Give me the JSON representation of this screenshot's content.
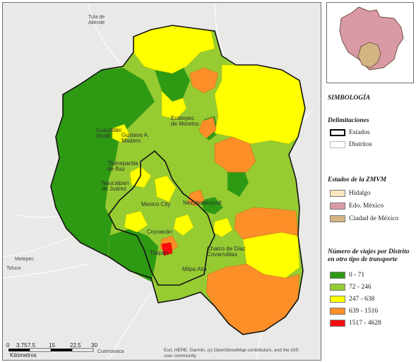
{
  "map": {
    "place_labels": [
      {
        "id": "tula",
        "text": "Tula de\nAllende"
      },
      {
        "id": "toluca",
        "text": "Toluca"
      },
      {
        "id": "metepec",
        "text": "Metepec"
      },
      {
        "id": "cuernavaca",
        "text": "Cuernavaca"
      },
      {
        "id": "gam",
        "text": "Gustavo A.\nMadero"
      },
      {
        "id": "ecatepec",
        "text": "Ecatepec\nde Morelos"
      },
      {
        "id": "tlalnepantla",
        "text": "Tlalnepantla\nde Baz"
      },
      {
        "id": "naucalpan",
        "text": "Naucalpan\nde Juárez"
      },
      {
        "id": "cdmx",
        "text": "Mexico City"
      },
      {
        "id": "neza",
        "text": "Nezahualcóyotl"
      },
      {
        "id": "coyoacan",
        "text": "Coyoacán"
      },
      {
        "id": "tlalpan",
        "text": "Tlalpan"
      },
      {
        "id": "chalco",
        "text": "Chalco de Díaz\nCovarrubias"
      },
      {
        "id": "milpa",
        "text": "Milpa Alta"
      },
      {
        "id": "cuautitlan",
        "text": "Cuautitlán\nIzcalli"
      }
    ],
    "scale_ticks": [
      "0",
      "3.75",
      "7.5",
      "15",
      "22.5",
      "30"
    ],
    "scale_unit": "Kilómetros",
    "attribution": "Esri, HERE, Garmin, (c) OpenStreetMap contributors, and the GIS\nuser community"
  },
  "legend": {
    "title": "SIMBOLOGÍA",
    "delimitaciones": {
      "title": "Delimitaciones",
      "items": [
        {
          "label": "Estados",
          "fill": "#ffffff",
          "stroke": "#000000",
          "icon": "thick-outline"
        },
        {
          "label": "Distritos",
          "fill": "#ffffff",
          "stroke": "#bdbdbd",
          "icon": "thin-outline"
        }
      ]
    },
    "estados": {
      "title": "Estados de la ZMVM",
      "items": [
        {
          "label": "Hidalgo",
          "fill": "#fce6bd"
        },
        {
          "label": "Edo. México",
          "fill": "#d99aa6"
        },
        {
          "label": "Ciudad de México",
          "fill": "#d5b484"
        }
      ]
    },
    "viajes": {
      "title": "Número de viajes por Distrito en otro tipo de transporte",
      "items": [
        {
          "label": "0 - 71",
          "fill": "#2e9a14"
        },
        {
          "label": "72 - 246",
          "fill": "#96cc32"
        },
        {
          "label": "247 - 638",
          "fill": "#ffff00"
        },
        {
          "label": "639 - 1516",
          "fill": "#fc8f28"
        },
        {
          "label": "1517 - 4628",
          "fill": "#fc0c0c"
        }
      ]
    }
  }
}
